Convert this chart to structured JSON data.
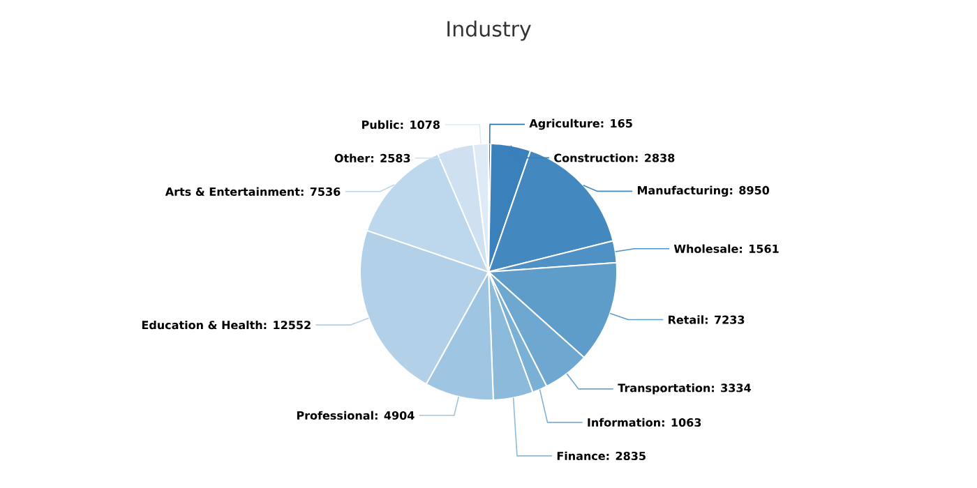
{
  "chart_data": {
    "type": "pie",
    "title": "Industry",
    "categories": [
      "Agriculture",
      "Construction",
      "Manufacturing",
      "Wholesale",
      "Retail",
      "Transportation",
      "Information",
      "Finance",
      "Professional",
      "Education & Health",
      "Arts & Entertainment",
      "Other",
      "Public"
    ],
    "values": [
      165,
      2838,
      8950,
      1561,
      7233,
      3334,
      1063,
      2835,
      4904,
      12552,
      7536,
      2583,
      1078
    ],
    "value_labels": [
      ": 165",
      ": 2838",
      ": 8950",
      ": 1561",
      ": 7233",
      ": 3334",
      ": 1063",
      ": 2835",
      ": 4904",
      ": 12552",
      ": 7536",
      ": 2583",
      ": 1078"
    ],
    "colors": [
      "#2f76b0",
      "#3a80ba",
      "#4388bf",
      "#4f91c5",
      "#5e9cca",
      "#6ea7d0",
      "#7bb0d6",
      "#8cbadb",
      "#9ec5e1",
      "#b2d0e7",
      "#bdd7ec",
      "#cfe1f1",
      "#deebf6"
    ]
  }
}
